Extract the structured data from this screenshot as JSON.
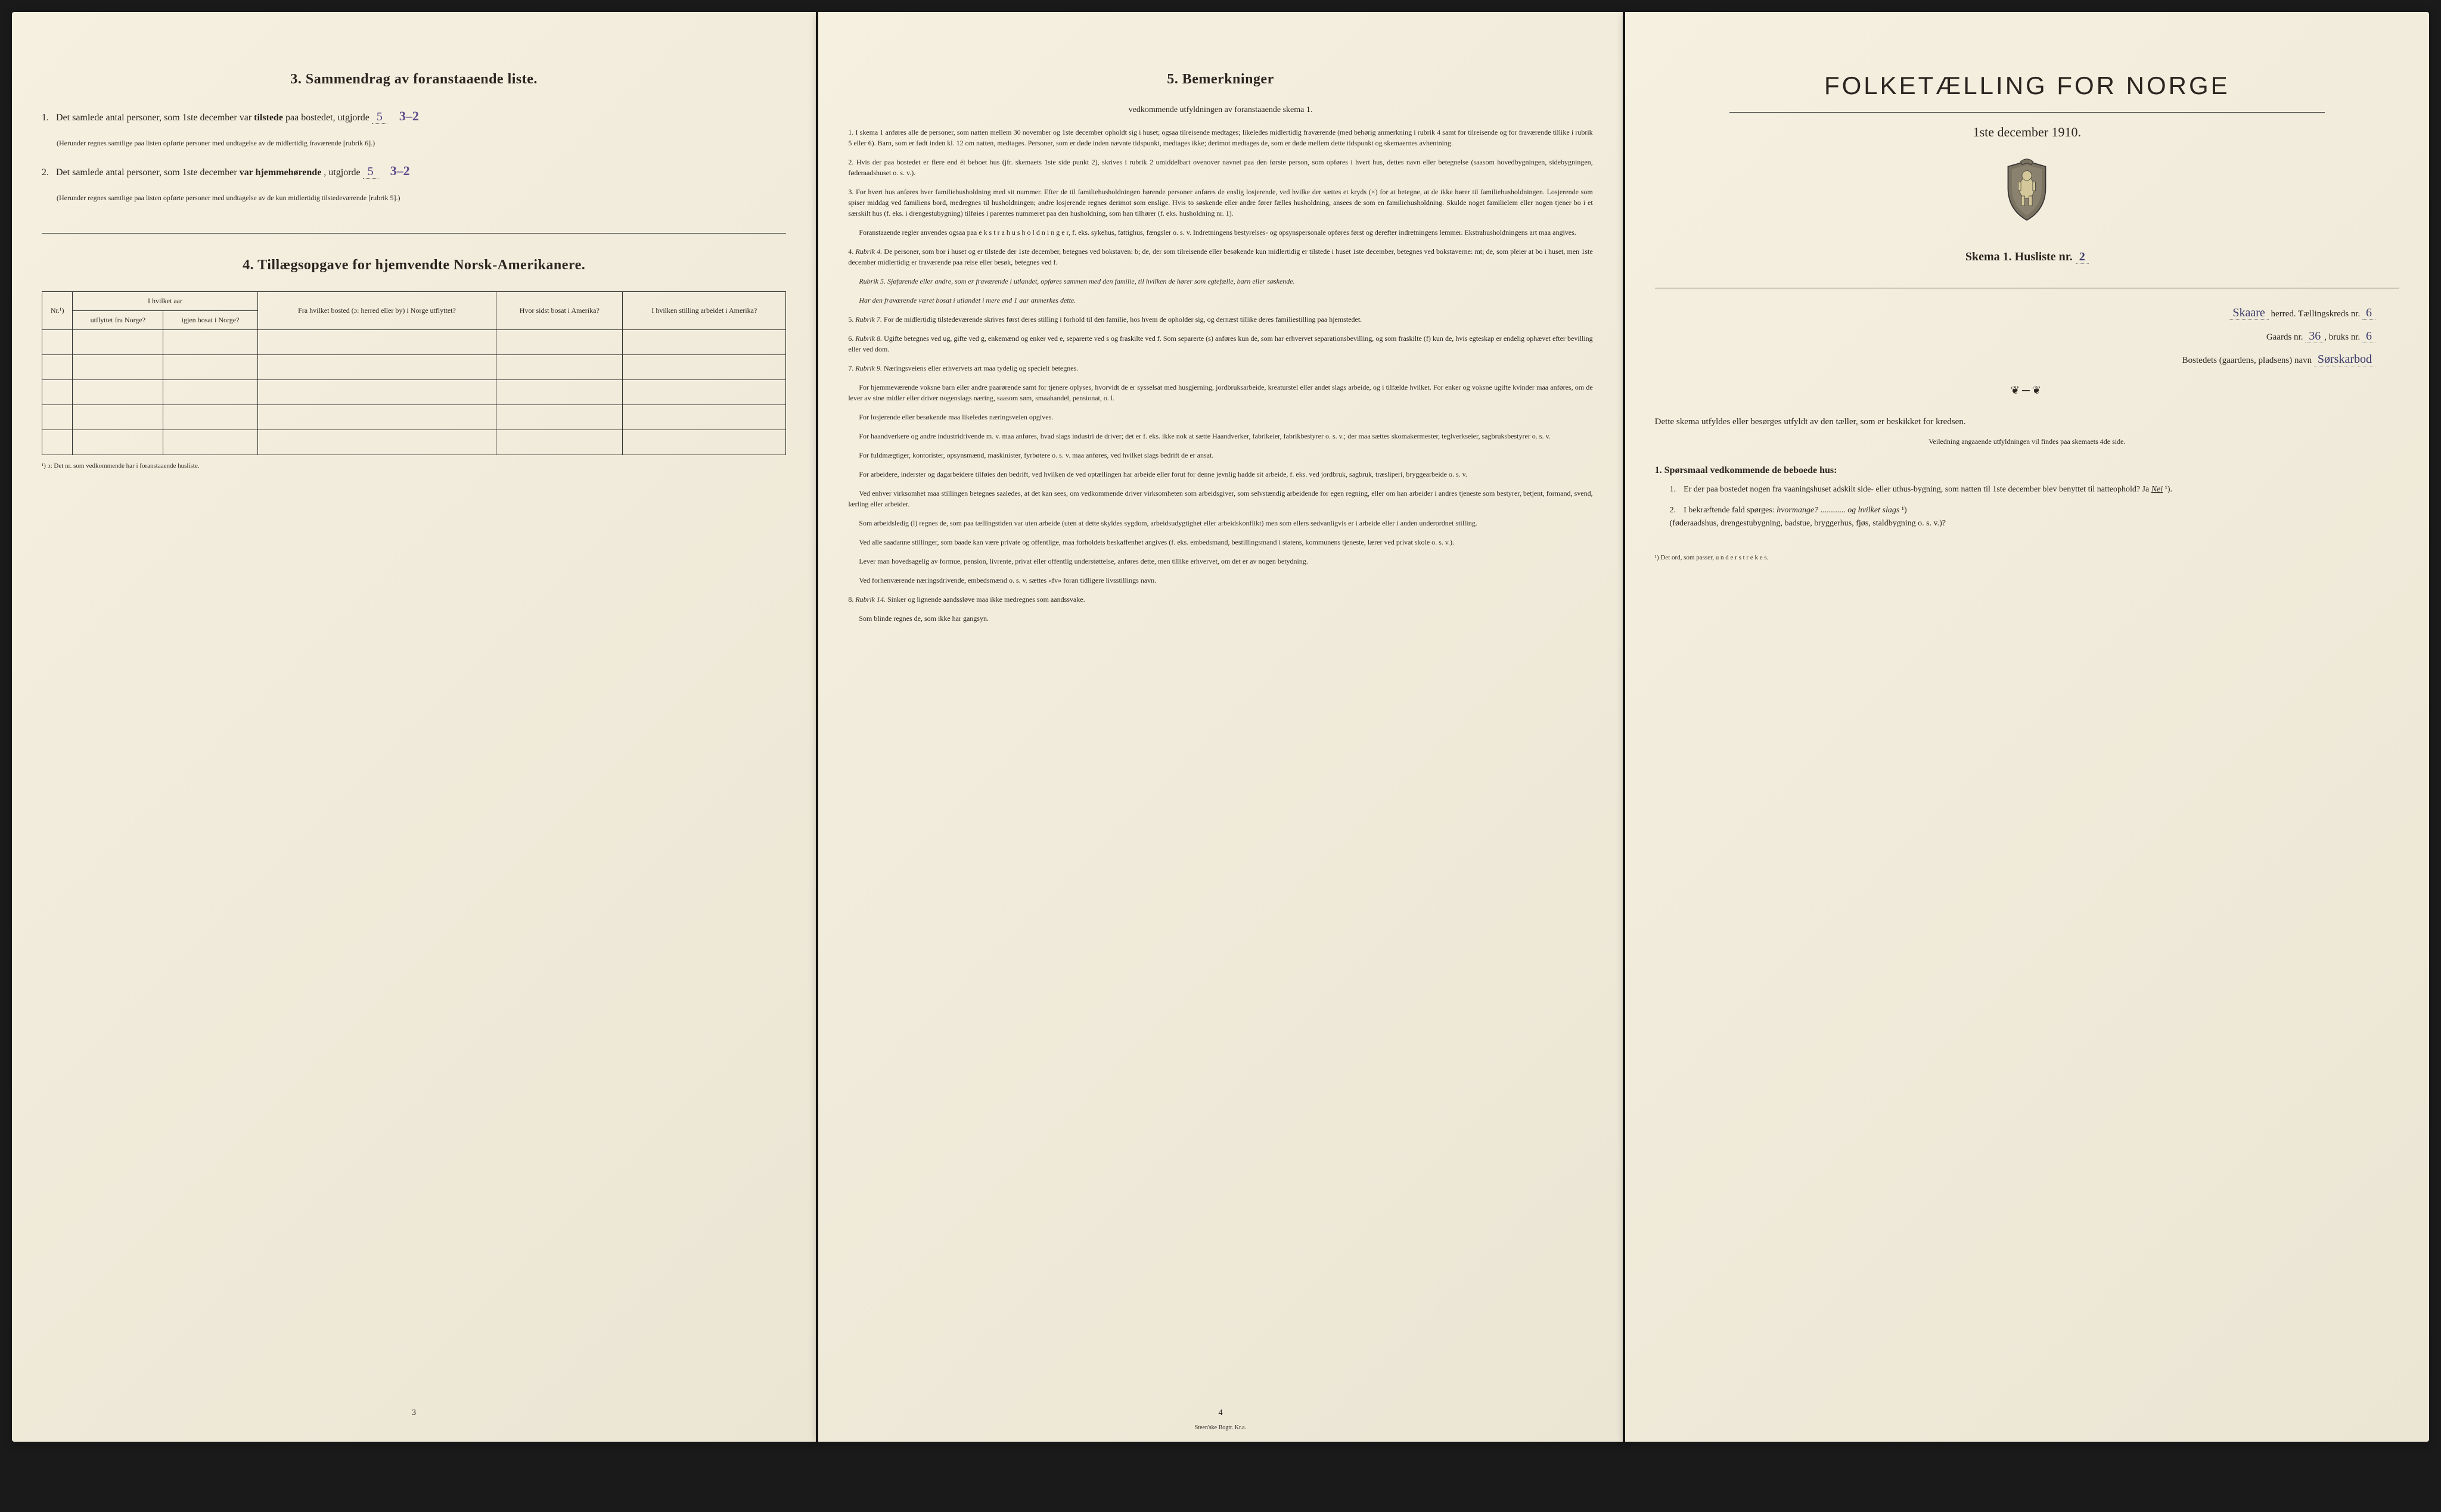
{
  "colors": {
    "paper_bg_start": "#f5f0e0",
    "paper_bg_end": "#ebe5d4",
    "text": "#2a2520",
    "handwriting": "#5a4a8a",
    "border": "#333333",
    "page_shadow": "#000000"
  },
  "typography": {
    "body_family": "Georgia, Times New Roman, serif",
    "handwriting_family": "cursive",
    "section_title_size_pt": 18,
    "body_size_pt": 12,
    "small_size_pt": 9,
    "cover_title_size_pt": 32
  },
  "page_left": {
    "section3": {
      "title": "3.  Sammendrag av foranstaaende liste.",
      "item1_prefix": "1.",
      "item1_text_a": "Det samlede antal personer, som 1ste december var ",
      "item1_bold": "tilstede",
      "item1_text_b": " paa bostedet, utgjorde ",
      "item1_value": "5",
      "item1_handwritten": "3–2",
      "item1_note": "(Herunder regnes samtlige paa listen opførte personer med undtagelse av de midlertidig fraværende [rubrik 6].)",
      "item2_prefix": "2.",
      "item2_text_a": "Det samlede antal personer, som 1ste december ",
      "item2_bold": "var hjemmehørende",
      "item2_text_b": ", utgjorde ",
      "item2_value": "5",
      "item2_handwritten": "3–2",
      "item2_note": "(Herunder regnes samtlige paa listen opførte personer med undtagelse av de kun midlertidig tilstedeværende [rubrik 5].)"
    },
    "section4": {
      "title": "4.  Tillægsopgave for hjemvendte Norsk-Amerikanere.",
      "table": {
        "columns": [
          {
            "key": "nr",
            "header": "Nr.¹)",
            "width_pct": 8,
            "align": "center"
          },
          {
            "key": "hvilket_aar",
            "header": "I hvilket aar",
            "width_pct": 22,
            "subcols": [
              {
                "header": "utflyttet fra Norge?"
              },
              {
                "header": "igjen bosat i Norge?"
              }
            ]
          },
          {
            "key": "fra_bosted",
            "header": "Fra hvilket bosted (ɔ: herred eller by) i Norge utflyttet?",
            "width_pct": 24
          },
          {
            "key": "hvor_sidst",
            "header": "Hvor sidst bosat i Amerika?",
            "width_pct": 22
          },
          {
            "key": "stilling",
            "header": "I hvilken stilling arbeidet i Amerika?",
            "width_pct": 24
          }
        ],
        "blank_row_count": 5
      },
      "footnote": "¹) ɔ: Det nr. som vedkommende har i foranstaaende husliste."
    },
    "page_number": "3"
  },
  "page_center": {
    "title": "5.  Bemerkninger",
    "subtitle": "vedkommende utfyldningen av foranstaaende skema 1.",
    "remarks": [
      {
        "n": "1.",
        "text": "I skema 1 anføres alle de personer, som natten mellem 30 november og 1ste december opholdt sig i huset; ogsaa tilreisende medtages; likeledes midlertidig fraværende (med behørig anmerkning i rubrik 4 samt for tilreisende og for fraværende tillike i rubrik 5 eller 6). Barn, som er født inden kl. 12 om natten, medtages. Personer, som er døde inden nævnte tidspunkt, medtages ikke; derimot medtages de, som er døde mellem dette tidspunkt og skemaernes avhentning."
      },
      {
        "n": "2.",
        "text": "Hvis der paa bostedet er flere end ét beboet hus (jfr. skemaets 1ste side punkt 2), skrives i rubrik 2 umiddelbart ovenover navnet paa den første person, som opføres i hvert hus, dettes navn eller betegnelse (saasom hovedbygningen, sidebygningen, føderaadshuset o. s. v.)."
      },
      {
        "n": "3.",
        "text": "For hvert hus anføres hver familiehusholdning med sit nummer. Efter de til familiehusholdningen hørende personer anføres de enslig losjerende, ved hvilke der sættes et kryds (×) for at betegne, at de ikke hører til familiehusholdningen. Losjerende som spiser middag ved familiens bord, medregnes til husholdningen; andre losjerende regnes derimot som enslige. Hvis to søskende eller andre fører fælles husholdning, ansees de som en familiehusholdning. Skulde noget familielem eller nogen tjener bo i et særskilt hus (f. eks. i drengestubygning) tilføies i parentes nummeret paa den husholdning, som han tilhører (f. eks. husholdning nr. 1).",
        "extra": "Foranstaaende regler anvendes ogsaa paa e k s t r a h u s h o l d n i n g e r, f. eks. sykehus, fattighus, fængsler o. s. v. Indretningens bestyrelses- og opsynspersonale opføres først og derefter indretningens lemmer. Ekstrahusholdningens art maa angives."
      },
      {
        "n": "4.",
        "rubrik": "Rubrik 4.",
        "text": "De personer, som bor i huset og er tilstede der 1ste december, betegnes ved bokstaven: b; de, der som tilreisende eller besøkende kun midlertidig er tilstede i huset 1ste december, betegnes ved bokstaverne: mt; de, som pleier at bo i huset, men 1ste december midlertidig er fraværende paa reise eller besøk, betegnes ved f.",
        "sub": [
          "Rubrik 5. Sjøfarende eller andre, som er fraværende i utlandet, opføres sammen med den familie, til hvilken de hører som egtefælle, barn eller søskende.",
          "Har den fraværende været bosat i utlandet i mere end 1 aar anmerkes dette."
        ]
      },
      {
        "n": "5.",
        "rubrik": "Rubrik 7.",
        "text": "For de midlertidig tilstedeværende skrives først deres stilling i forhold til den familie, hos hvem de opholder sig, og dernæst tillike deres familiestilling paa hjemstedet."
      },
      {
        "n": "6.",
        "rubrik": "Rubrik 8.",
        "text": "Ugifte betegnes ved ug, gifte ved g, enkemænd og enker ved e, separerte ved s og fraskilte ved f. Som separerte (s) anføres kun de, som har erhvervet separationsbevilling, og som fraskilte (f) kun de, hvis egteskap er endelig ophævet efter bevilling eller ved dom."
      },
      {
        "n": "7.",
        "rubrik": "Rubrik 9.",
        "text": "Næringsveiens eller erhvervets art maa tydelig og specielt betegnes.",
        "paras": [
          "For hjemmeværende voksne barn eller andre paarørende samt for tjenere oplyses, hvorvidt de er sysselsat med husgjerning, jordbruksarbeide, kreaturstel eller andet slags arbeide, og i tilfælde hvilket. For enker og voksne ugifte kvinder maa anføres, om de lever av sine midler eller driver nogenslags næring, saasom søm, smaahandel, pensionat, o. l.",
          "For losjerende eller besøkende maa likeledes næringsveien opgives.",
          "For haandverkere og andre industridrivende m. v. maa anføres, hvad slags industri de driver; det er f. eks. ikke nok at sætte Haandverker, fabrikeier, fabrikbestyrer o. s. v.; der maa sættes skomakermester, teglverkseier, sagbruksbestyrer o. s. v.",
          "For fuldmægtiger, kontorister, opsynsmænd, maskinister, fyrbøtere o. s. v. maa anføres, ved hvilket slags bedrift de er ansat.",
          "For arbeidere, inderster og dagarbeidere tilføies den bedrift, ved hvilken de ved optællingen har arbeide eller forut for denne jevnlig hadde sit arbeide, f. eks. ved jordbruk, sagbruk, træsliperi, bryggearbeide o. s. v.",
          "Ved enhver virksomhet maa stillingen betegnes saaledes, at det kan sees, om vedkommende driver virksomheten som arbeidsgiver, som selvstændig arbeidende for egen regning, eller om han arbeider i andres tjeneste som bestyrer, betjent, formand, svend, lærling eller arbeider.",
          "Som arbeidsledig (l) regnes de, som paa tællingstiden var uten arbeide (uten at dette skyldes sygdom, arbeidsudygtighet eller arbeidskonflikt) men som ellers sedvanligvis er i arbeide eller i anden underordnet stilling.",
          "Ved alle saadanne stillinger, som baade kan være private og offentlige, maa forholdets beskaffenhet angives (f. eks. embedsmand, bestillingsmand i statens, kommunens tjeneste, lærer ved privat skole o. s. v.).",
          "Lever man hovedsagelig av formue, pension, livrente, privat eller offentlig understøttelse, anføres dette, men tillike erhvervet, om det er av nogen betydning.",
          "Ved forhenværende næringsdrivende, embedsmænd o. s. v. sættes «fv» foran tidligere livsstillings navn."
        ]
      },
      {
        "n": "8.",
        "rubrik": "Rubrik 14.",
        "text": "Sinker og lignende aandssløve maa ikke medregnes som aandssvake.",
        "extra": "Som blinde regnes de, som ikke har gangsyn."
      }
    ],
    "page_number": "4",
    "printer": "Steen'ske Bogtr.  Kr.a."
  },
  "page_right": {
    "cover_title": "FOLKETÆLLING FOR NORGE",
    "cover_date": "1ste december 1910.",
    "schema_label": "Skema 1.  Husliste nr.",
    "schema_nr": "2",
    "fields": {
      "herred_value": "Skaare",
      "herred_label": "herred.    Tællingskreds nr.",
      "kreds_nr": "6",
      "gaards_label": "Gaards nr.",
      "gaards_nr": "36",
      "bruks_label": "bruks nr.",
      "bruks_nr": "6",
      "bosted_label": "Bostedets (gaardens, pladsens) navn",
      "bosted_value": "Sørskarbod"
    },
    "instruction1": "Dette skema utfyldes eller besørges utfyldt av den tæller, som er beskikket for kredsen.",
    "instruction1_sub": "Veiledning angaaende utfyldningen vil findes paa skemaets 4de side.",
    "q_heading": "1. Spørsmaal vedkommende de beboede hus:",
    "q1": {
      "num": "1.",
      "text": "Er der paa bostedet nogen fra vaaningshuset adskilt side- eller uthus-bygning, som natten til 1ste december blev benyttet til natteophold?   Ja   ",
      "answer": "Nei",
      "suffix": "¹)."
    },
    "q2": {
      "num": "2.",
      "text_a": "I bekræftende fald spørges: ",
      "emph_a": "hvormange?",
      "blank": " ............ ",
      "emph_b": "og hvilket slags",
      "suffix": "¹)",
      "paren": "(føderaadshus, drengestubygning, badstue, bryggerhus, fjøs, staldbygning o. s. v.)?"
    },
    "footnote": "¹) Det ord, som passer, u n d e r s t r e k e s."
  }
}
